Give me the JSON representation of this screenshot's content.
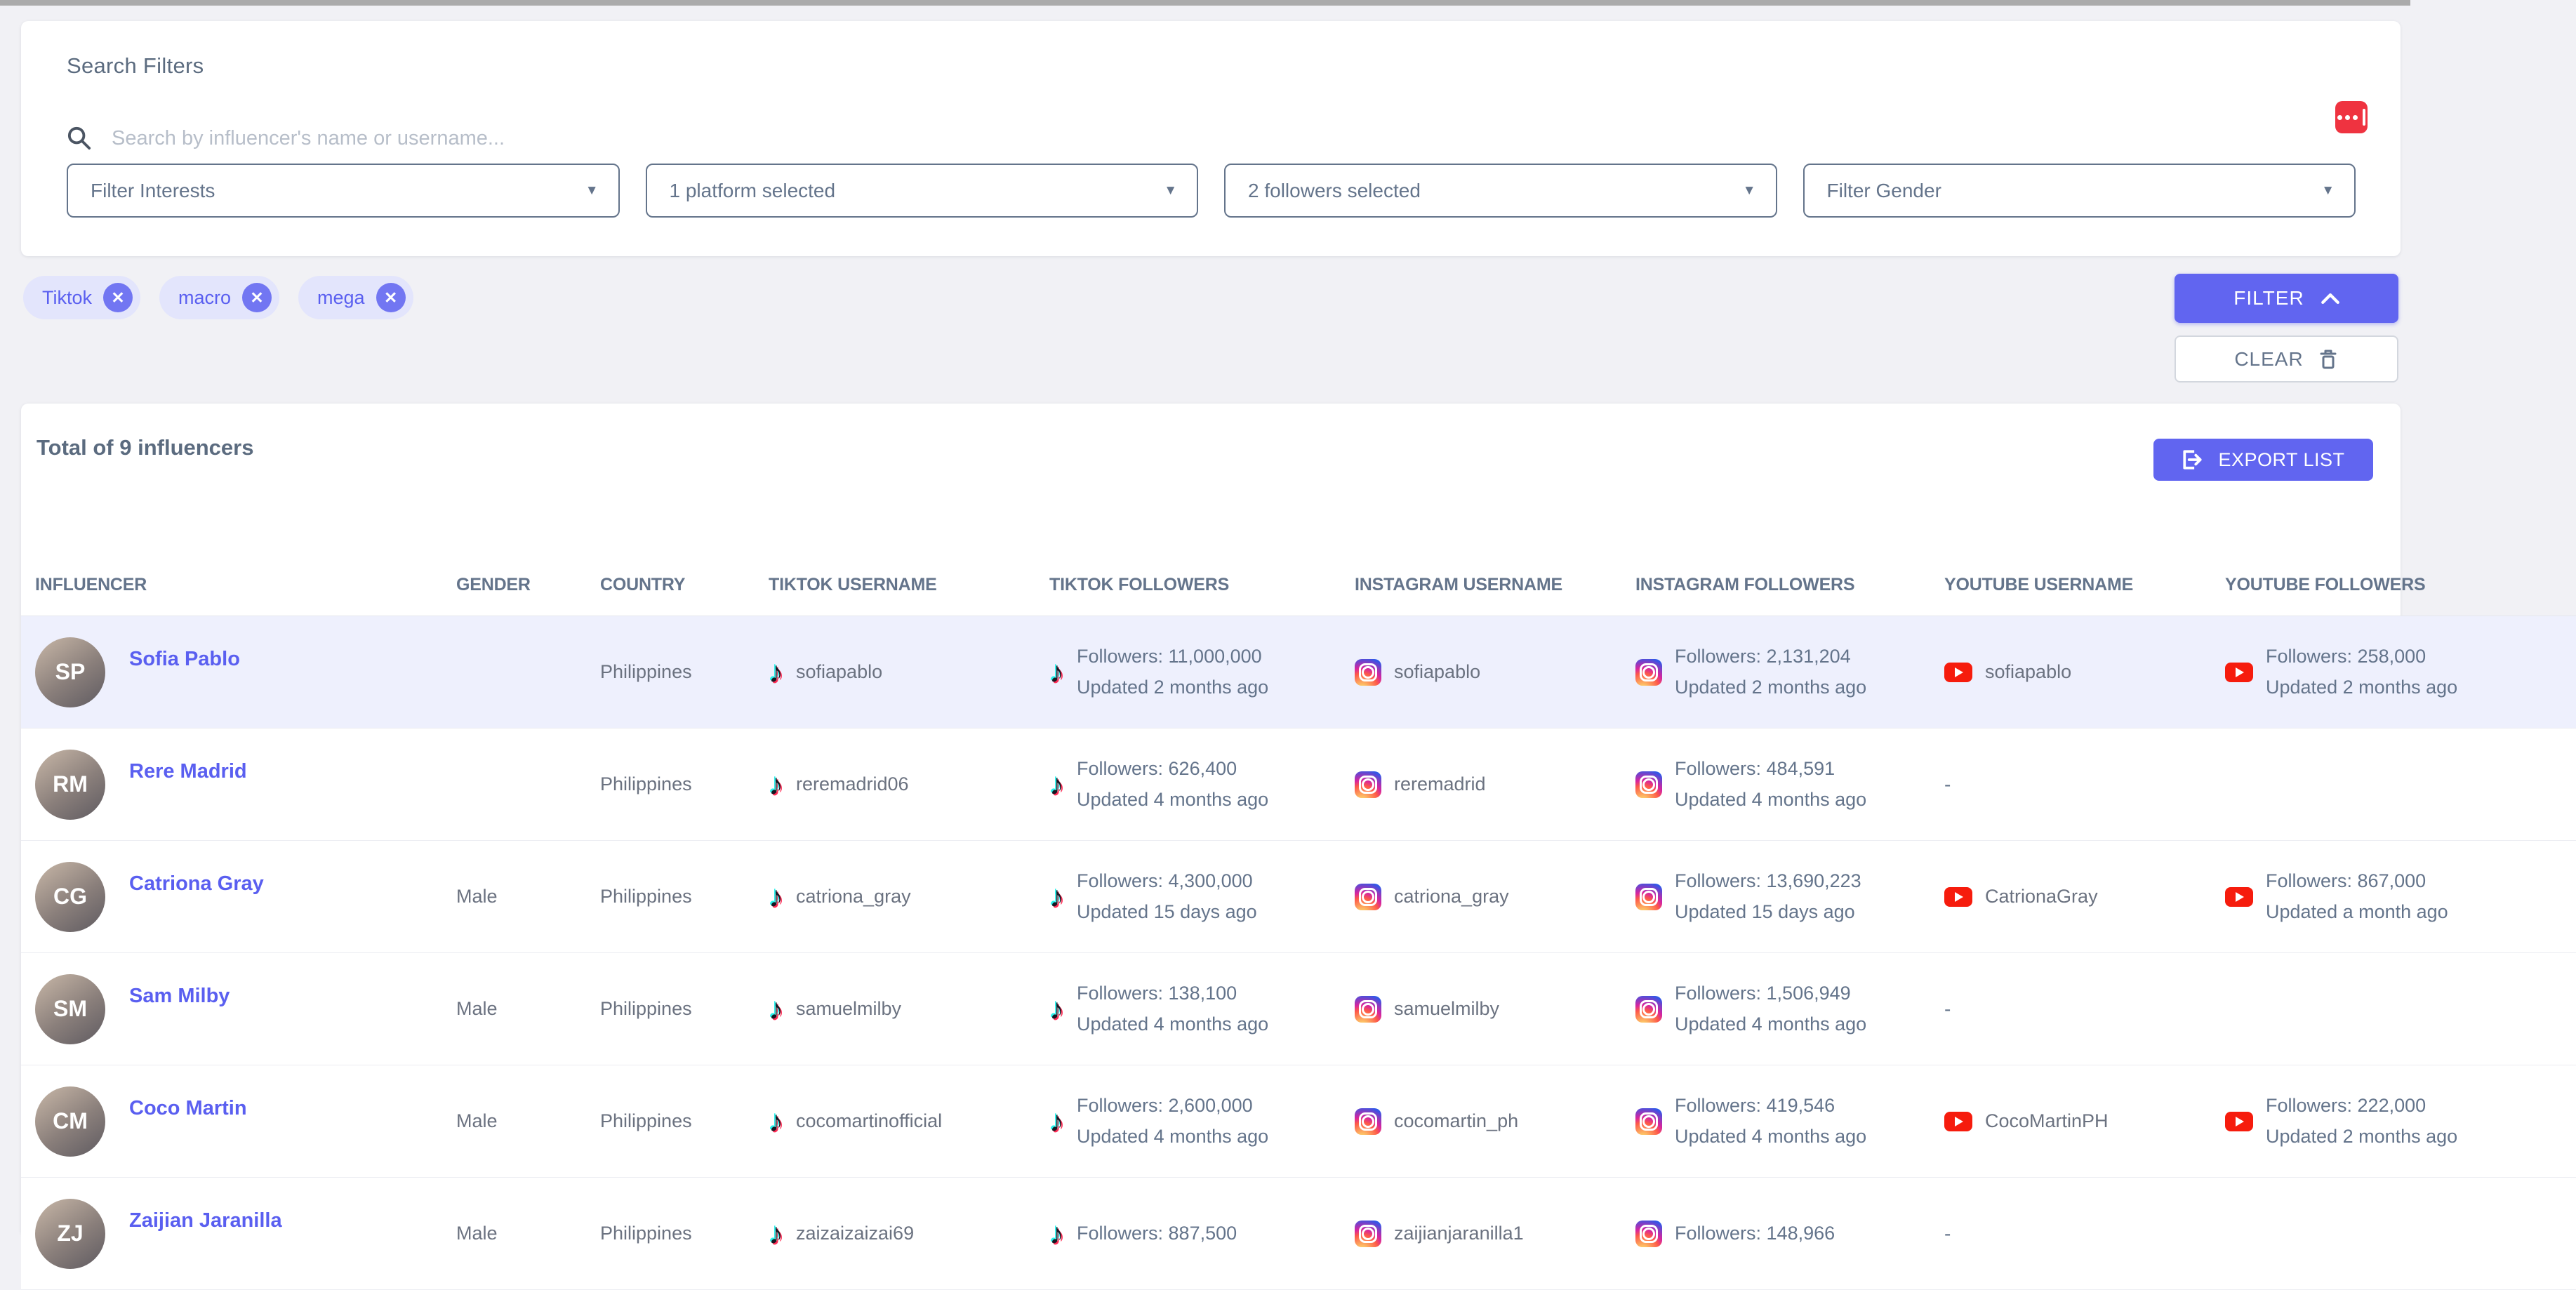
{
  "search_card": {
    "title": "Search Filters",
    "search": {
      "placeholder": "Search by influencer's name or username...",
      "value": ""
    },
    "dropdowns": [
      {
        "label": "Filter Interests"
      },
      {
        "label": "1 platform selected"
      },
      {
        "label": "2 followers selected"
      },
      {
        "label": "Filter Gender"
      }
    ]
  },
  "filter_bar": {
    "chips": [
      {
        "label": "Tiktok"
      },
      {
        "label": "macro"
      },
      {
        "label": "mega"
      }
    ],
    "filter_label": "FILTER",
    "clear_label": "CLEAR"
  },
  "results": {
    "total_text": "Total of 9 influencers",
    "export_label": "EXPORT LIST",
    "table": {
      "columns": [
        "INFLUENCER",
        "GENDER",
        "COUNTRY",
        "TIKTOK USERNAME",
        "TIKTOK FOLLOWERS",
        "INSTAGRAM USERNAME",
        "INSTAGRAM FOLLOWERS",
        "YOUTUBE USERNAME",
        "YOUTUBE FOLLOWERS"
      ],
      "rows": [
        {
          "name": "Sofia Pablo",
          "gender": "",
          "country": "Philippines",
          "highlighted": true,
          "tiktok_username": "sofiapablo",
          "tiktok_followers": "Followers: 11,000,000",
          "tiktok_updated": "Updated 2 months ago",
          "instagram_username": "sofiapablo",
          "instagram_followers": "Followers: 2,131,204",
          "instagram_updated": "Updated 2 months ago",
          "youtube_username": "sofiapablo",
          "youtube_followers": "Followers: 258,000",
          "youtube_updated": "Updated 2 months ago"
        },
        {
          "name": "Rere Madrid",
          "gender": "",
          "country": "Philippines",
          "highlighted": false,
          "tiktok_username": "reremadrid06",
          "tiktok_followers": "Followers: 626,400",
          "tiktok_updated": "Updated 4 months ago",
          "instagram_username": "reremadrid",
          "instagram_followers": "Followers: 484,591",
          "instagram_updated": "Updated 4 months ago",
          "youtube_username": "-",
          "youtube_followers": "",
          "youtube_updated": ""
        },
        {
          "name": "Catriona Gray",
          "gender": "Male",
          "country": "Philippines",
          "highlighted": false,
          "tiktok_username": "catriona_gray",
          "tiktok_followers": "Followers: 4,300,000",
          "tiktok_updated": "Updated 15 days ago",
          "instagram_username": "catriona_gray",
          "instagram_followers": "Followers: 13,690,223",
          "instagram_updated": "Updated 15 days ago",
          "youtube_username": "CatrionaGray",
          "youtube_followers": "Followers: 867,000",
          "youtube_updated": "Updated a month ago"
        },
        {
          "name": "Sam Milby",
          "gender": "Male",
          "country": "Philippines",
          "highlighted": false,
          "tiktok_username": "samuelmilby",
          "tiktok_followers": "Followers: 138,100",
          "tiktok_updated": "Updated 4 months ago",
          "instagram_username": "samuelmilby",
          "instagram_followers": "Followers: 1,506,949",
          "instagram_updated": "Updated 4 months ago",
          "youtube_username": "-",
          "youtube_followers": "",
          "youtube_updated": ""
        },
        {
          "name": "Coco Martin",
          "gender": "Male",
          "country": "Philippines",
          "highlighted": false,
          "tiktok_username": "cocomartinofficial",
          "tiktok_followers": "Followers: 2,600,000",
          "tiktok_updated": "Updated 4 months ago",
          "instagram_username": "cocomartin_ph",
          "instagram_followers": "Followers: 419,546",
          "instagram_updated": "Updated 4 months ago",
          "youtube_username": "CocoMartinPH",
          "youtube_followers": "Followers: 222,000",
          "youtube_updated": "Updated 2 months ago"
        },
        {
          "name": "Zaijian Jaranilla",
          "gender": "Male",
          "country": "Philippines",
          "highlighted": false,
          "tiktok_username": "zaizaizaizai69",
          "tiktok_followers": "Followers: 887,500",
          "tiktok_updated": "",
          "instagram_username": "zaijianjaranilla1",
          "instagram_followers": "Followers: 148,966",
          "instagram_updated": "",
          "youtube_username": "-",
          "youtube_followers": "",
          "youtube_updated": ""
        }
      ]
    }
  },
  "colors": {
    "accent_indigo": "#6165f0",
    "chip_bg": "#e3e5fc",
    "chip_text": "#5a5ff0",
    "row_highlight": "#eef0fd",
    "slate_text": "#64748b",
    "extension_icon_red": "#ef3340",
    "youtube_red": "#f61c0d"
  }
}
